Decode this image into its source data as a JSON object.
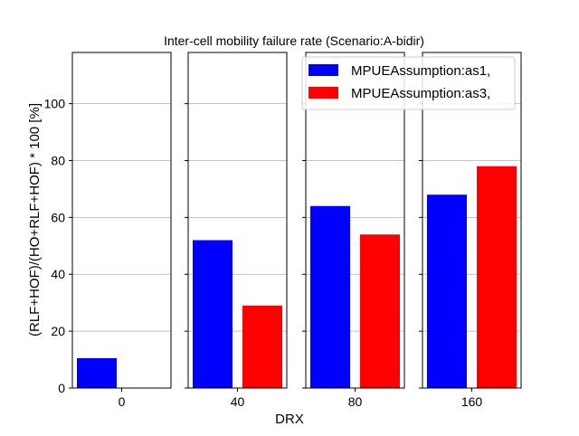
{
  "chart_data": {
    "type": "bar",
    "title": "Inter-cell mobility failure rate (Scenario:A-bidir)",
    "xlabel": "DRX",
    "ylabel": "(RLF+HOF)/(HO+RLF+HOF) * 100 [%]",
    "ylim": [
      0,
      118
    ],
    "yticks": [
      0,
      20,
      40,
      60,
      80,
      100
    ],
    "grid": true,
    "legend_position": "top-right",
    "categories": [
      "0",
      "40",
      "80",
      "160"
    ],
    "series": [
      {
        "name": "MPUEAssumption:as1,",
        "color": "#0000ff",
        "values": [
          10.5,
          52,
          64,
          68
        ]
      },
      {
        "name": "MPUEAssumption:as3,",
        "color": "#ff0000",
        "values": [
          0,
          29,
          54,
          78
        ]
      }
    ]
  }
}
